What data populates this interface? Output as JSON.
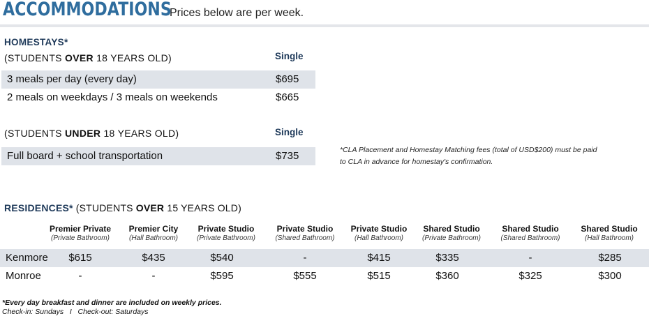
{
  "header": {
    "title": "ACCOMMODATIONS",
    "subtitle": "Prices below are per week."
  },
  "homestays": {
    "heading": "HOMESTAYS*",
    "over18": {
      "prefix": "(STUDENTS ",
      "emph": "OVER",
      "suffix": " 18 YEARS OLD)",
      "column": "Single",
      "rows": [
        {
          "label": "3 meals per day (every day)",
          "price": "$695"
        },
        {
          "label": "2 meals on weekdays / 3 meals on weekends",
          "price": "$665"
        }
      ]
    },
    "under18": {
      "prefix": "(STUDENTS ",
      "emph": "UNDER",
      "suffix": " 18 YEARS OLD)",
      "column": "Single",
      "rows": [
        {
          "label": "Full board + school transportation",
          "price": "$735"
        }
      ]
    },
    "note_line1": "*CLA Placement and Homestay Matching fees (total of USD$200) must be paid",
    "note_line2": "to CLA in advance for homestay's confirmation."
  },
  "residences": {
    "heading": "RESIDENCES*",
    "prefix": " (STUDENTS ",
    "emph": "OVER",
    "suffix": " 15 YEARS OLD)",
    "columns": [
      {
        "name": "Premier Private",
        "sub": "(Private Bathroom)"
      },
      {
        "name": "Premier City",
        "sub": "(Hall Bathroom)"
      },
      {
        "name": "Private Studio",
        "sub": "(Private Bathroom)"
      },
      {
        "name": "Private Studio",
        "sub": "(Shared Bathroom)"
      },
      {
        "name": "Private Studio",
        "sub": "(Hall Bathroom)"
      },
      {
        "name": "Shared Studio",
        "sub": "(Private Bathroom)"
      },
      {
        "name": "Shared Studio",
        "sub": "(Shared Bathroom)"
      },
      {
        "name": "Shared Studio",
        "sub": "(Hall Bathroom)"
      }
    ],
    "rows": [
      {
        "name": "Kenmore",
        "values": [
          "$615",
          "$435",
          "$540",
          "-",
          "$415",
          "$335",
          "-",
          "$285"
        ]
      },
      {
        "name": "Monroe",
        "values": [
          "-",
          "-",
          "$595",
          "$555",
          "$515",
          "$360",
          "$325",
          "$300"
        ]
      }
    ]
  },
  "footer": {
    "line1": "*Every day breakfast and dinner are included on weekly prices.",
    "line2": "Check-in: Sundays   I   Check-out: Saturdays"
  },
  "colors": {
    "accent": "#2f6d9e",
    "heading": "#1f3a5a",
    "row_shade": "#dfe3e9"
  }
}
